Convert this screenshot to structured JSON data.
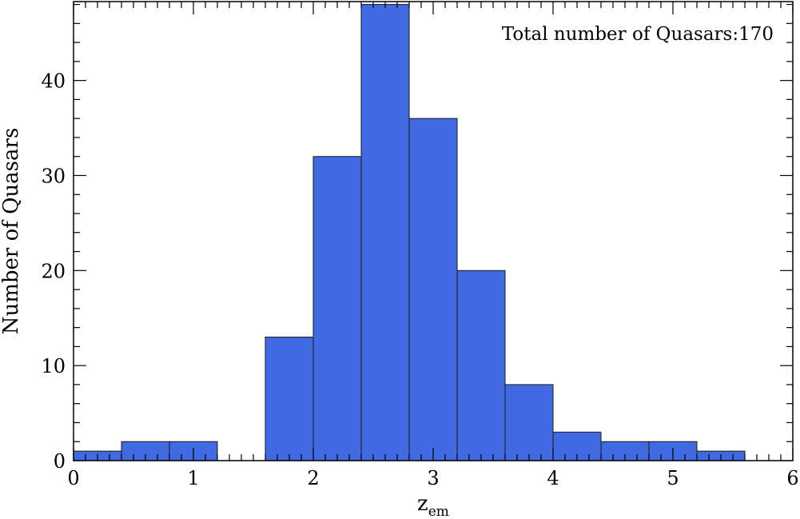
{
  "chart_data": {
    "type": "bar",
    "xlabel": "z",
    "xlabel_subscript": "em",
    "ylabel": "Number of Quasars",
    "annotation": "Total number of Quasars:170",
    "xlim": [
      0,
      6
    ],
    "ylim": [
      0,
      48
    ],
    "x_ticks": [
      "0",
      "1",
      "2",
      "3",
      "4",
      "5",
      "6"
    ],
    "y_ticks": [
      "0",
      "10",
      "20",
      "30",
      "40"
    ],
    "bin_edges_start": [
      0,
      0.4,
      0.8,
      1.6,
      2.0,
      2.4,
      2.8,
      3.2,
      3.6,
      4.0,
      4.4,
      4.8,
      5.2
    ],
    "bin_width": 0.4,
    "values": [
      1,
      2,
      2,
      13,
      32,
      48,
      36,
      20,
      8,
      3,
      2,
      2,
      1
    ],
    "bar_color": "#4169E1",
    "grid": false,
    "legend": "none",
    "annotation_position": "top-right"
  }
}
